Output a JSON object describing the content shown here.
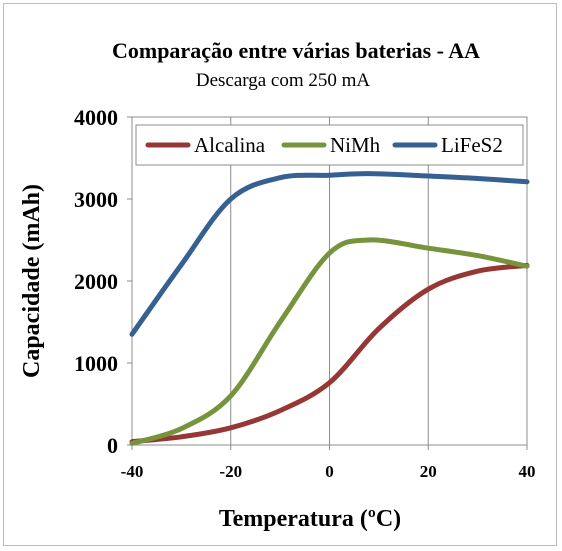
{
  "chart_data": {
    "type": "line",
    "title": "Comparação entre várias baterias - AA",
    "subtitle": "Descarga com 250 mA",
    "xlabel": "Temperatura (ºC)",
    "ylabel": "Capacidade (mAh)",
    "xlim": [
      -40,
      40
    ],
    "ylim": [
      0,
      4000
    ],
    "x_ticks": [
      -40,
      -20,
      0,
      20,
      40
    ],
    "y_ticks": [
      0,
      1000,
      2000,
      3000,
      4000
    ],
    "grid": "vertical",
    "legend_position": "top",
    "series": [
      {
        "name": "Alcalina",
        "color": "#953735",
        "points": [
          [
            -40,
            40
          ],
          [
            -30,
            100
          ],
          [
            -20,
            210
          ],
          [
            -10,
            420
          ],
          [
            0,
            760
          ],
          [
            10,
            1420
          ],
          [
            20,
            1900
          ],
          [
            30,
            2120
          ],
          [
            40,
            2190
          ]
        ]
      },
      {
        "name": "NiMh",
        "color": "#77933c",
        "points": [
          [
            -40,
            20
          ],
          [
            -30,
            200
          ],
          [
            -20,
            600
          ],
          [
            -10,
            1500
          ],
          [
            0,
            2340
          ],
          [
            8,
            2500
          ],
          [
            20,
            2400
          ],
          [
            30,
            2310
          ],
          [
            40,
            2180
          ]
        ]
      },
      {
        "name": "LiFeS2",
        "color": "#376092",
        "points": [
          [
            -40,
            1350
          ],
          [
            -30,
            2200
          ],
          [
            -20,
            3000
          ],
          [
            -10,
            3260
          ],
          [
            0,
            3290
          ],
          [
            8,
            3310
          ],
          [
            20,
            3280
          ],
          [
            30,
            3250
          ],
          [
            40,
            3210
          ]
        ]
      }
    ]
  }
}
